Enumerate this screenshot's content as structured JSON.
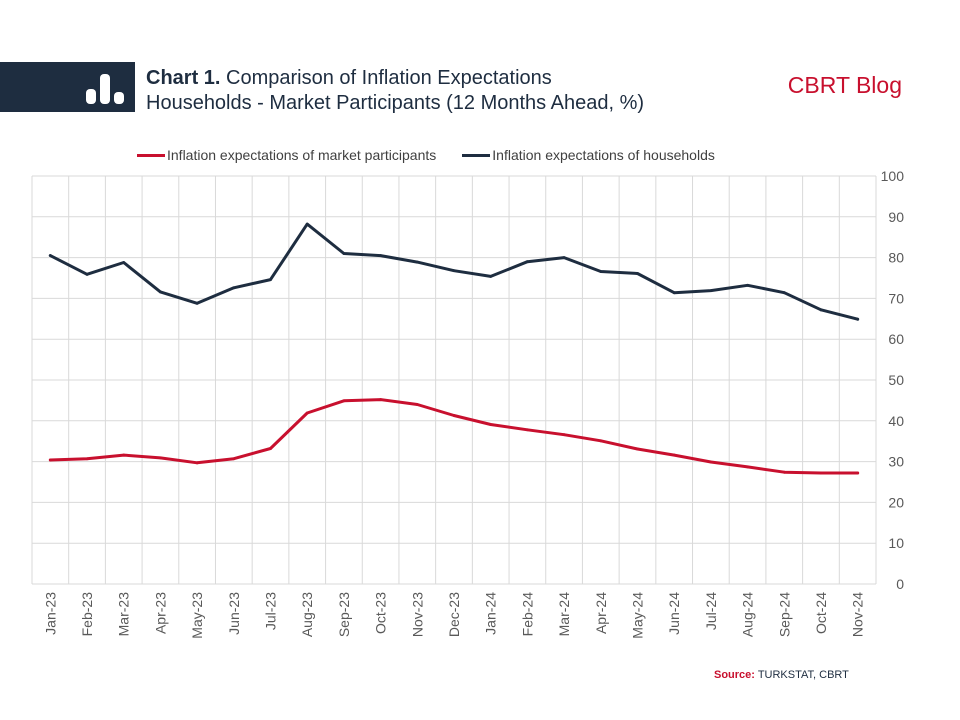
{
  "header": {
    "title_bold": "Chart 1.",
    "title_rest": " Comparison of Inflation Expectations",
    "subtitle": "Households - Market Participants (12 Months Ahead, %)",
    "brand": "CBRT Blog"
  },
  "source": {
    "label": "Source:",
    "text": " TURKSTAT, CBRT"
  },
  "colors": {
    "market": "#c8102e",
    "households": "#1e2d40",
    "band": "#1e2d40",
    "grid": "#d9d9d9"
  },
  "chart_data": {
    "type": "line",
    "x": [
      "Jan-23",
      "Feb-23",
      "Mar-23",
      "Apr-23",
      "May-23",
      "Jun-23",
      "Jul-23",
      "Aug-23",
      "Sep-23",
      "Oct-23",
      "Nov-23",
      "Dec-23",
      "Jan-24",
      "Feb-24",
      "Mar-24",
      "Apr-24",
      "May-24",
      "Jun-24",
      "Jul-24",
      "Aug-24",
      "Sep-24",
      "Oct-24",
      "Nov-24"
    ],
    "series": [
      {
        "name": "Inflation expectations of market participants",
        "values": [
          30.4,
          30.7,
          31.6,
          30.9,
          29.7,
          30.7,
          33.2,
          41.9,
          44.9,
          45.2,
          44.0,
          41.3,
          39.1,
          37.8,
          36.6,
          35.1,
          33.1,
          31.6,
          29.9,
          28.7,
          27.4,
          27.2,
          27.2
        ]
      },
      {
        "name": "Inflation expectations of households",
        "values": [
          80.5,
          75.9,
          78.8,
          71.6,
          68.8,
          72.6,
          74.6,
          88.2,
          81.0,
          80.5,
          78.9,
          76.8,
          75.4,
          79.0,
          80.0,
          76.6,
          76.1,
          71.4,
          71.9,
          73.2,
          71.4,
          67.2,
          64.9
        ]
      }
    ],
    "y_axis": {
      "position": "right",
      "ylim": [
        0,
        100
      ],
      "ticks": [
        0,
        10,
        20,
        30,
        40,
        50,
        60,
        70,
        80,
        90,
        100
      ]
    },
    "grid": true,
    "legend": "top"
  }
}
